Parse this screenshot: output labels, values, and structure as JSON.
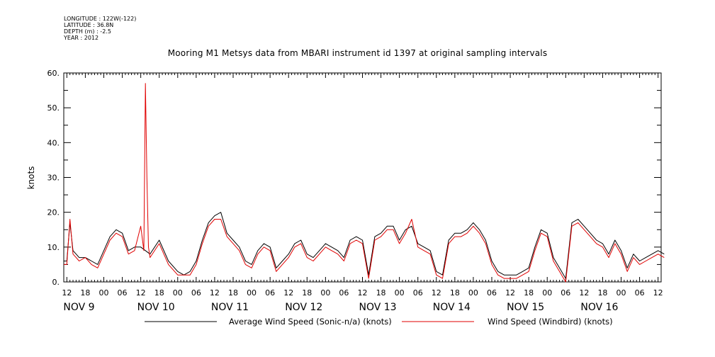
{
  "meta": {
    "longitude": "LONGITUDE : 122W(-122)",
    "latitude": "LATITUDE : 36.8N",
    "depth": "DEPTH (m) : -2.5",
    "year": "YEAR : 2012"
  },
  "chart_data": {
    "type": "line",
    "title": "Mooring M1 Metsys data from MBARI instrument id 1397 at original sampling intervals",
    "ylabel": "knots",
    "xlabel": "",
    "ylim": [
      0,
      60
    ],
    "y_ticks": [
      "0.",
      "10.",
      "20.",
      "30.",
      "40.",
      "50.",
      "60."
    ],
    "x_range_hours": [
      "2012-11-08T11:00",
      "2012-11-16T13:00"
    ],
    "hour_ticks": [
      "12",
      "18",
      "00",
      "06",
      "12",
      "18",
      "00",
      "06",
      "12",
      "18",
      "00",
      "06",
      "12",
      "18",
      "00",
      "06",
      "12",
      "18",
      "00",
      "06",
      "12",
      "18",
      "00",
      "06",
      "12",
      "18",
      "00",
      "06",
      "12",
      "18",
      "00",
      "06",
      "12"
    ],
    "day_labels": [
      "NOV  9",
      "NOV 10",
      "NOV 11",
      "NOV 12",
      "NOV 13",
      "NOV 14",
      "NOV 15",
      "NOV 16"
    ],
    "grid": false,
    "legend_placement": "bottom",
    "series": [
      {
        "name": "Average Wind Speed (Sonic-n/a) (knots)",
        "color": "#000000",
        "x_hours_from_nov8_12": [
          -1,
          0,
          1,
          2,
          3,
          4,
          6,
          8,
          10,
          12,
          14,
          16,
          18,
          20,
          22,
          24,
          27,
          30,
          33,
          36,
          38,
          40,
          42,
          44,
          46,
          48,
          50,
          52,
          54,
          56,
          58,
          60,
          62,
          64,
          66,
          68,
          70,
          72,
          74,
          76,
          78,
          80,
          82,
          84,
          86,
          88,
          90,
          92,
          94,
          96,
          98,
          100,
          102,
          104,
          106,
          108,
          110,
          112,
          114,
          116,
          118,
          120,
          122,
          124,
          126,
          128,
          130,
          132,
          134,
          136,
          138,
          140,
          142,
          144,
          146,
          148,
          150,
          152,
          154,
          156,
          158,
          160,
          162,
          164,
          166,
          168,
          170,
          172,
          174,
          176,
          178,
          180,
          182,
          184,
          186,
          188,
          190,
          192,
          194
        ],
        "values": [
          6,
          6,
          17,
          9,
          8,
          7,
          7,
          6,
          5,
          9,
          13,
          15,
          14,
          9,
          10,
          10,
          8,
          12,
          6,
          3,
          2,
          3,
          6,
          12,
          17,
          19,
          20,
          14,
          12,
          10,
          6,
          5,
          9,
          11,
          10,
          4,
          6,
          8,
          11,
          12,
          8,
          7,
          9,
          11,
          10,
          9,
          7,
          12,
          13,
          12,
          2,
          13,
          14,
          16,
          16,
          12,
          15,
          16,
          11,
          10,
          9,
          3,
          2,
          12,
          14,
          14,
          15,
          17,
          15,
          12,
          6,
          3,
          2,
          2,
          2,
          3,
          4,
          10,
          15,
          14,
          7,
          4,
          1,
          17,
          18,
          16,
          14,
          12,
          11,
          8,
          12,
          9,
          4,
          8,
          6,
          7,
          8,
          9,
          8
        ],
        "values_note": "approximate"
      },
      {
        "name": "Wind Speed (Windbird) (knots)",
        "color": "#e00000",
        "x_hours_from_nov8_12": [
          -1,
          0,
          1,
          2,
          3,
          4,
          6,
          8,
          10,
          12,
          14,
          16,
          18,
          20,
          22,
          24,
          25,
          25.5,
          26,
          26.5,
          27,
          30,
          33,
          36,
          38,
          40,
          42,
          44,
          46,
          48,
          50,
          52,
          54,
          56,
          58,
          60,
          62,
          64,
          66,
          68,
          70,
          72,
          74,
          76,
          78,
          80,
          82,
          84,
          86,
          88,
          90,
          92,
          94,
          96,
          98,
          100,
          102,
          104,
          106,
          108,
          110,
          112,
          114,
          116,
          118,
          120,
          122,
          124,
          126,
          128,
          130,
          132,
          134,
          136,
          138,
          140,
          142,
          144,
          146,
          148,
          150,
          152,
          154,
          156,
          158,
          160,
          162,
          164,
          166,
          168,
          170,
          172,
          174,
          176,
          178,
          180,
          182,
          184,
          186,
          188,
          190,
          192,
          194
        ],
        "values": [
          5,
          5,
          18,
          8,
          7,
          6,
          7,
          5,
          4,
          8,
          12,
          14,
          13,
          8,
          9,
          16,
          9,
          57,
          30,
          10,
          7,
          11,
          5,
          2,
          2,
          2,
          5,
          11,
          16,
          18,
          18,
          13,
          11,
          9,
          5,
          4,
          8,
          10,
          9,
          3,
          5,
          7,
          10,
          11,
          7,
          6,
          8,
          10,
          9,
          8,
          6,
          11,
          12,
          11,
          1,
          12,
          13,
          15,
          15,
          11,
          14,
          18,
          10,
          9,
          8,
          2,
          1,
          11,
          13,
          13,
          14,
          16,
          14,
          11,
          5,
          2,
          1,
          1,
          1,
          2,
          3,
          9,
          14,
          13,
          6,
          3,
          0,
          16,
          17,
          15,
          13,
          11,
          10,
          7,
          11,
          8,
          3,
          7,
          5,
          6,
          7,
          8,
          7
        ],
        "values_note": "approximate"
      }
    ]
  }
}
